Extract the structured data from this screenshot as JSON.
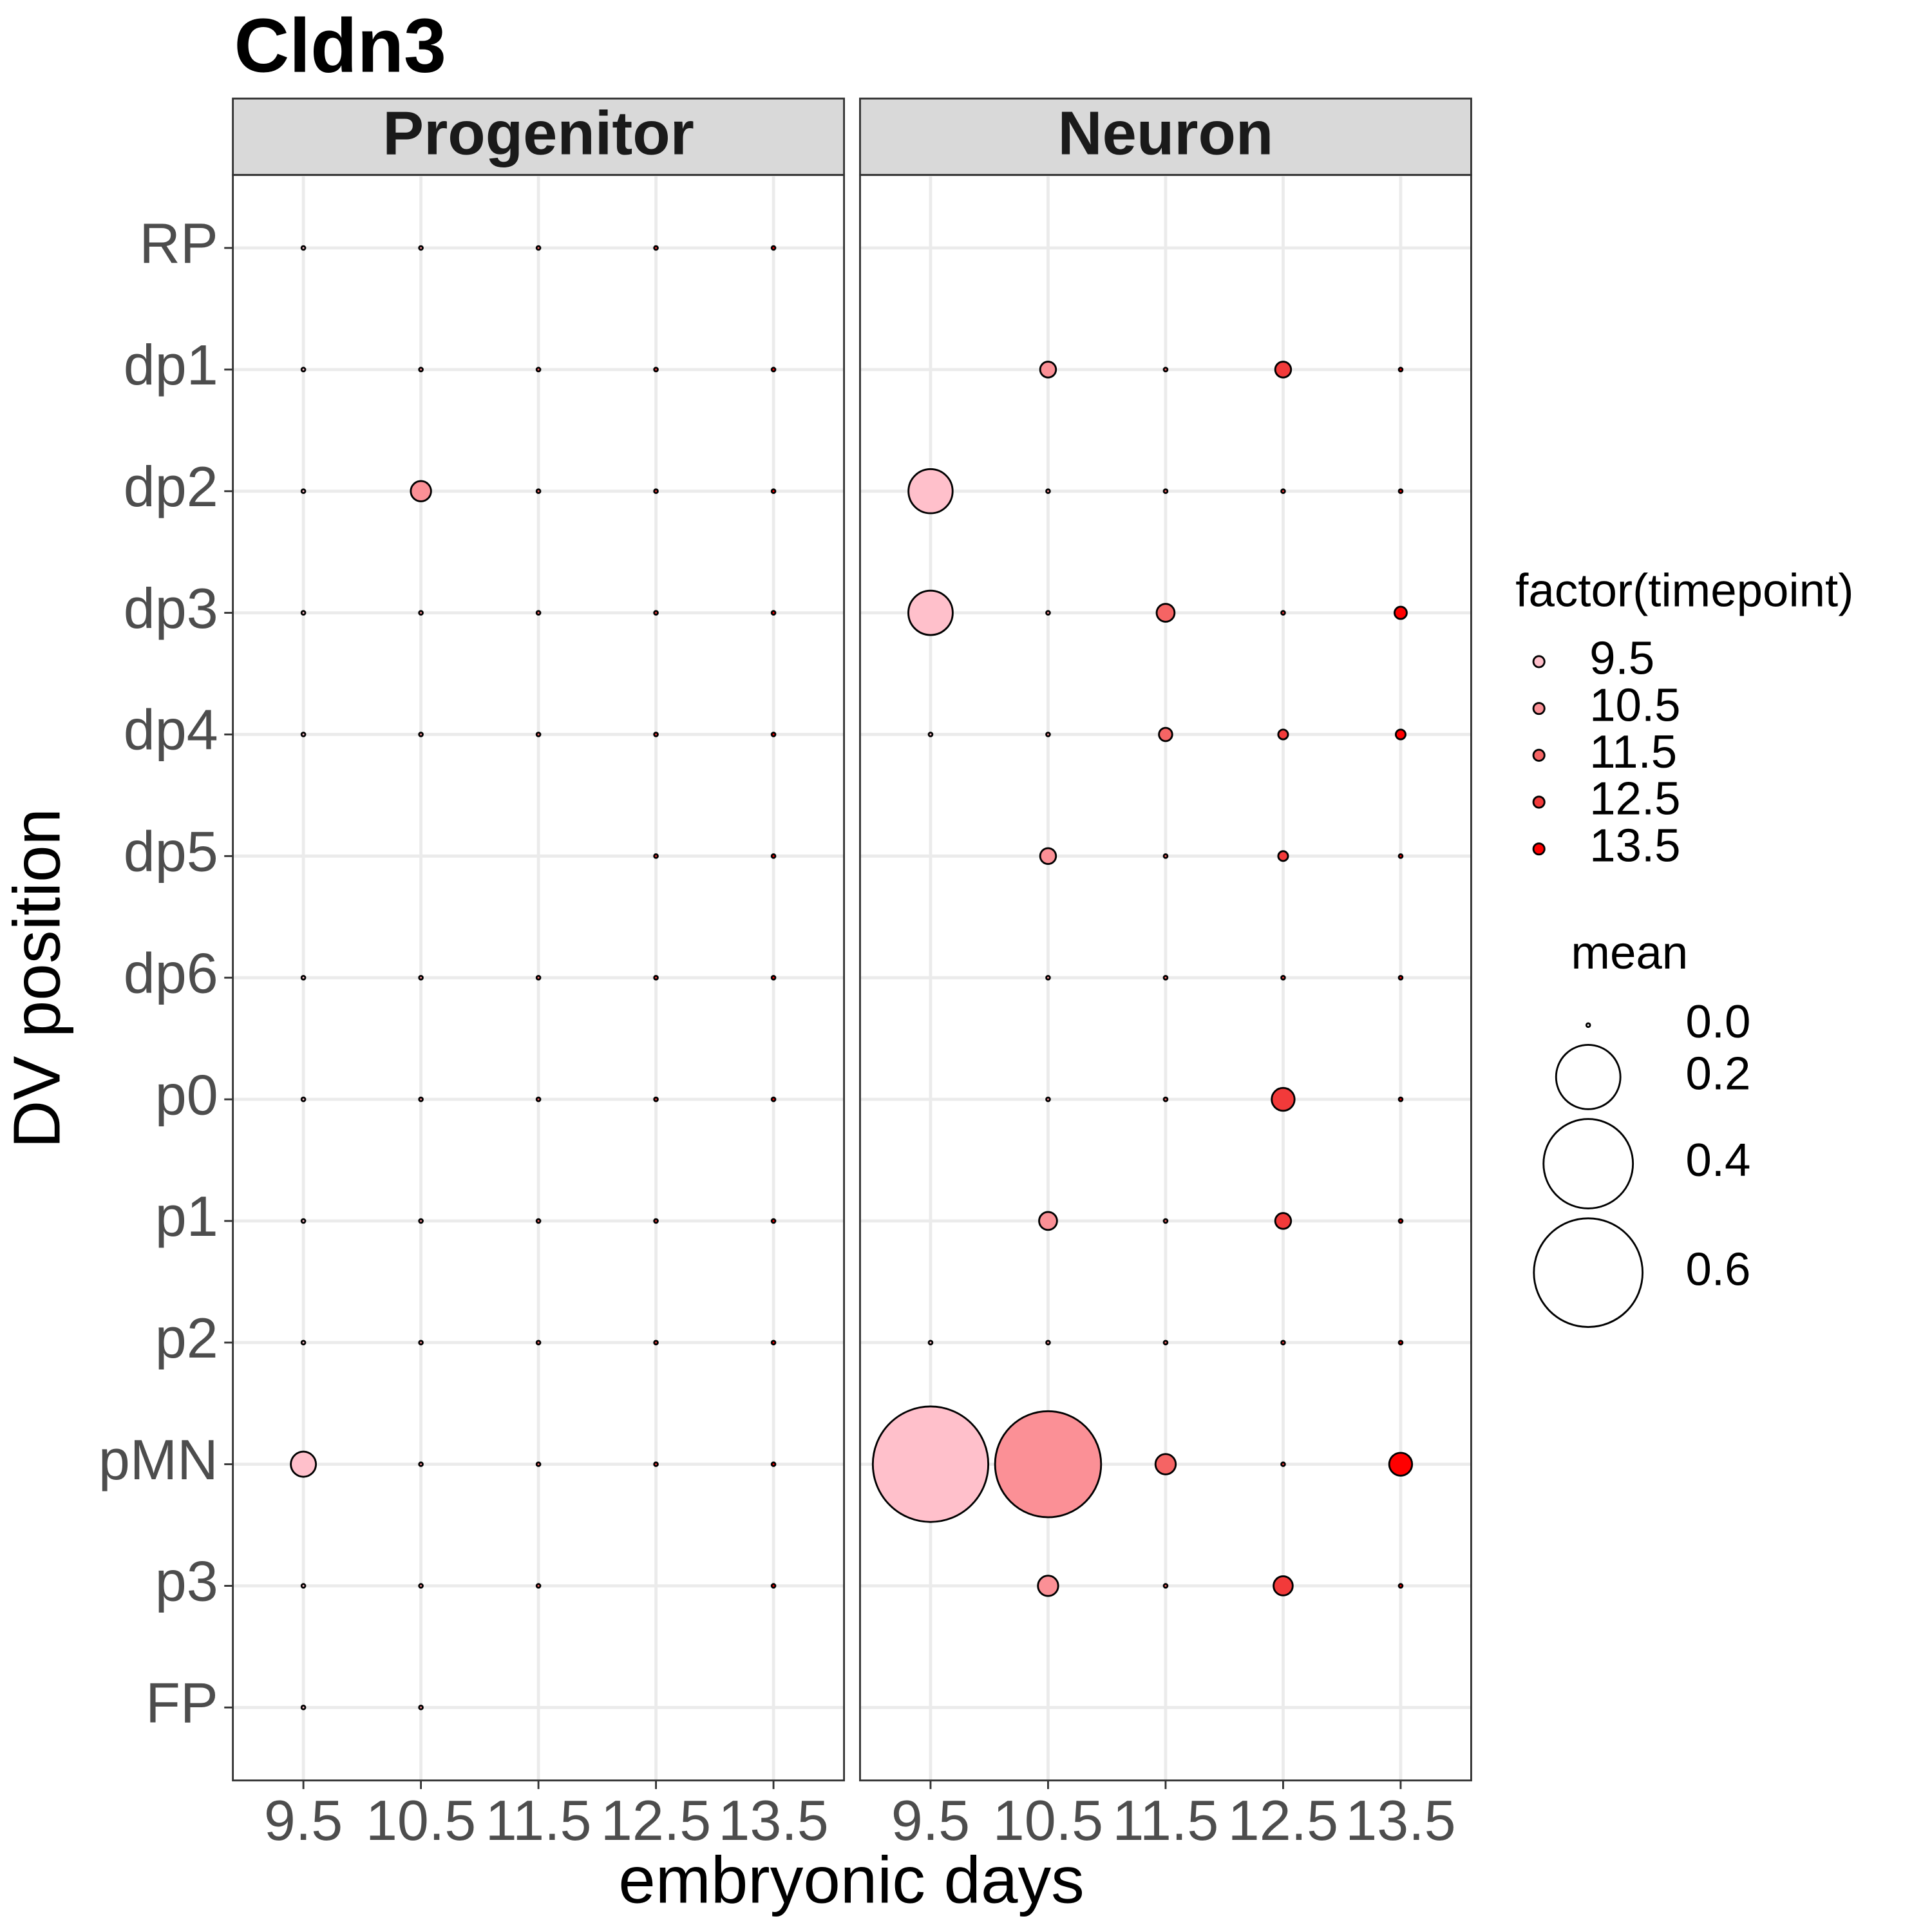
{
  "chart_data": {
    "type": "bubble",
    "title": "Cldn3",
    "x_label": "embryonic days",
    "y_label": "DV position",
    "x_categories": [
      "9.5",
      "10.5",
      "11.5",
      "12.5",
      "13.5"
    ],
    "y_categories": [
      "RP",
      "dp1",
      "dp2",
      "dp3",
      "dp4",
      "dp5",
      "dp6",
      "p0",
      "p1",
      "p2",
      "pMN",
      "p3",
      "FP"
    ],
    "grid": true,
    "color_legend_title": "factor(timepoint)",
    "series": [
      {
        "name": "9.5",
        "color": "#ffc0cb"
      },
      {
        "name": "10.5",
        "color": "#fb9096"
      },
      {
        "name": "11.5",
        "color": "#f56464"
      },
      {
        "name": "12.5",
        "color": "#f23a3a"
      },
      {
        "name": "13.5",
        "color": "#ff0000"
      }
    ],
    "size_legend_title": "mean",
    "size_ticks": [
      {
        "value": 0,
        "label": "0.0"
      },
      0.2,
      0.4,
      0.6
    ],
    "facets": [
      {
        "name": "Progenitor",
        "values": [
          [
            0,
            0,
            0,
            0,
            0,
            null,
            0,
            0,
            0,
            0,
            0.025,
            0,
            0
          ],
          [
            0,
            0,
            0.015,
            0,
            0,
            null,
            0,
            0,
            0,
            0,
            0,
            0,
            0
          ],
          [
            0,
            0,
            0,
            0,
            0,
            null,
            0,
            0,
            0,
            0,
            0,
            0,
            null
          ],
          [
            0,
            0,
            0,
            0,
            0,
            0,
            0,
            0,
            0,
            0,
            0,
            null,
            null
          ],
          [
            0,
            0,
            0,
            0,
            0,
            0,
            0,
            0,
            0,
            0,
            0,
            0,
            null
          ]
        ]
      },
      {
        "name": "Neuron",
        "values": [
          [
            null,
            null,
            0.089,
            0.09,
            0,
            null,
            null,
            null,
            null,
            0,
            0.68,
            null,
            null
          ],
          [
            null,
            0.008,
            0,
            0,
            0,
            0.008,
            0,
            0,
            0.011,
            0,
            0.57,
            0.015,
            null
          ],
          [
            null,
            0,
            0,
            0.011,
            0.005,
            0,
            0,
            0,
            0,
            0,
            0.015,
            0,
            null
          ],
          [
            null,
            0.008,
            0,
            0,
            0.002,
            0.002,
            0,
            0.02,
            0.008,
            0,
            0,
            0.013,
            null
          ],
          [
            null,
            0,
            0,
            0.004,
            0.002,
            0,
            0,
            0,
            0,
            0,
            0.02,
            0,
            null
          ]
        ]
      }
    ]
  }
}
